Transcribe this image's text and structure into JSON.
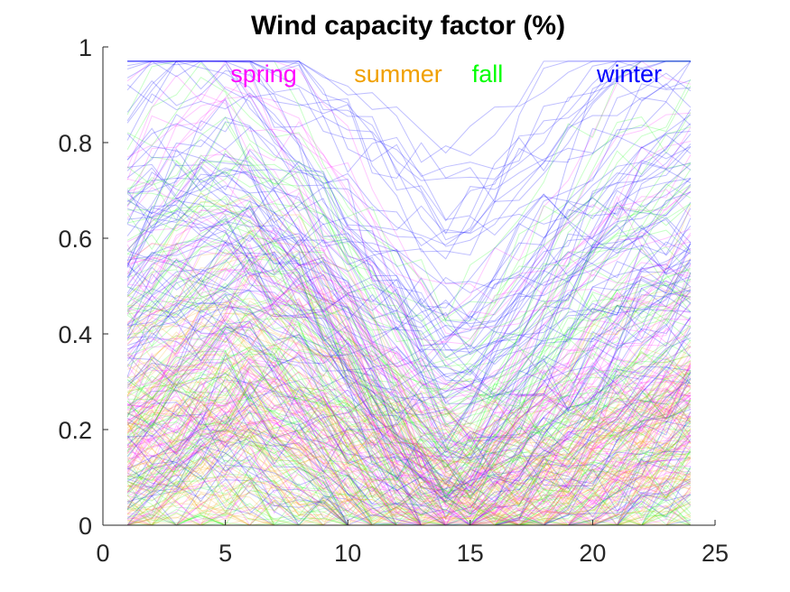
{
  "chart_data": {
    "type": "line",
    "title": "Wind capacity factor (%)",
    "xlabel": "",
    "ylabel": "",
    "xlim": [
      0,
      25
    ],
    "ylim": [
      0,
      1
    ],
    "x_ticks": [
      0,
      5,
      10,
      15,
      20,
      25
    ],
    "y_ticks": [
      0,
      0.2,
      0.4,
      0.6,
      0.8,
      1
    ],
    "x_tick_labels": [
      "0",
      "5",
      "10",
      "15",
      "20",
      "25"
    ],
    "y_tick_labels": [
      "0",
      "0.2",
      "0.4",
      "0.6",
      "0.8",
      "1"
    ],
    "x": [
      1,
      2,
      3,
      4,
      5,
      6,
      7,
      8,
      9,
      10,
      11,
      12,
      13,
      14,
      15,
      16,
      17,
      18,
      19,
      20,
      21,
      22,
      23,
      24
    ],
    "grid": false,
    "legend_position": "top (inside plot area)",
    "series": [
      {
        "name": "spring",
        "color": "#ff00ff",
        "line_count": 90,
        "line_opacity": 0.22,
        "profiles": [
          [
            0.62,
            0.66,
            0.7,
            0.72,
            0.74,
            0.7,
            0.65,
            0.6,
            0.55,
            0.48,
            0.4,
            0.33,
            0.25,
            0.2,
            0.22,
            0.28,
            0.35,
            0.4,
            0.45,
            0.5,
            0.55,
            0.58,
            0.6,
            0.62
          ],
          [
            0.28,
            0.3,
            0.33,
            0.36,
            0.4,
            0.45,
            0.48,
            0.5,
            0.46,
            0.4,
            0.32,
            0.24,
            0.16,
            0.1,
            0.08,
            0.1,
            0.14,
            0.18,
            0.22,
            0.25,
            0.27,
            0.28,
            0.3,
            0.32
          ],
          [
            0.1,
            0.12,
            0.15,
            0.18,
            0.2,
            0.22,
            0.2,
            0.18,
            0.15,
            0.12,
            0.1,
            0.08,
            0.05,
            0.03,
            0.02,
            0.03,
            0.05,
            0.07,
            0.09,
            0.12,
            0.15,
            0.18,
            0.22,
            0.25
          ]
        ]
      },
      {
        "name": "summer",
        "color": "#f0a000",
        "line_count": 90,
        "line_opacity": 0.22,
        "profiles": [
          [
            0.3,
            0.33,
            0.36,
            0.4,
            0.42,
            0.45,
            0.43,
            0.4,
            0.35,
            0.28,
            0.2,
            0.14,
            0.08,
            0.05,
            0.04,
            0.05,
            0.07,
            0.1,
            0.13,
            0.16,
            0.2,
            0.24,
            0.27,
            0.3
          ],
          [
            0.12,
            0.14,
            0.16,
            0.18,
            0.2,
            0.22,
            0.2,
            0.17,
            0.14,
            0.1,
            0.07,
            0.04,
            0.02,
            0.01,
            0.01,
            0.02,
            0.03,
            0.05,
            0.07,
            0.09,
            0.11,
            0.13,
            0.15,
            0.17
          ],
          [
            0.05,
            0.06,
            0.07,
            0.08,
            0.09,
            0.1,
            0.09,
            0.08,
            0.06,
            0.04,
            0.03,
            0.02,
            0.01,
            0.0,
            0.0,
            0.01,
            0.02,
            0.03,
            0.04,
            0.05,
            0.06,
            0.07,
            0.08,
            0.09
          ]
        ]
      },
      {
        "name": "fall",
        "color": "#00ff00",
        "line_count": 90,
        "line_opacity": 0.22,
        "profiles": [
          [
            0.6,
            0.62,
            0.65,
            0.66,
            0.68,
            0.66,
            0.62,
            0.58,
            0.52,
            0.46,
            0.4,
            0.34,
            0.28,
            0.24,
            0.25,
            0.3,
            0.36,
            0.42,
            0.48,
            0.52,
            0.56,
            0.58,
            0.6,
            0.62
          ],
          [
            0.25,
            0.27,
            0.3,
            0.32,
            0.35,
            0.36,
            0.34,
            0.31,
            0.27,
            0.22,
            0.17,
            0.12,
            0.08,
            0.06,
            0.06,
            0.08,
            0.11,
            0.14,
            0.17,
            0.2,
            0.22,
            0.24,
            0.26,
            0.28
          ],
          [
            0.08,
            0.09,
            0.1,
            0.12,
            0.13,
            0.14,
            0.13,
            0.11,
            0.09,
            0.07,
            0.05,
            0.04,
            0.03,
            0.02,
            0.02,
            0.03,
            0.04,
            0.05,
            0.06,
            0.07,
            0.08,
            0.09,
            0.1,
            0.11
          ]
        ]
      },
      {
        "name": "winter",
        "color": "#0000ff",
        "line_count": 90,
        "line_opacity": 0.25,
        "profiles": [
          [
            0.82,
            0.84,
            0.86,
            0.87,
            0.88,
            0.86,
            0.82,
            0.78,
            0.74,
            0.7,
            0.66,
            0.62,
            0.58,
            0.55,
            0.56,
            0.6,
            0.65,
            0.7,
            0.74,
            0.78,
            0.82,
            0.85,
            0.87,
            0.88
          ],
          [
            0.55,
            0.58,
            0.6,
            0.62,
            0.64,
            0.62,
            0.58,
            0.54,
            0.48,
            0.42,
            0.36,
            0.3,
            0.24,
            0.2,
            0.22,
            0.28,
            0.34,
            0.4,
            0.46,
            0.52,
            0.56,
            0.6,
            0.62,
            0.64
          ],
          [
            0.22,
            0.24,
            0.26,
            0.28,
            0.3,
            0.28,
            0.25,
            0.22,
            0.18,
            0.14,
            0.11,
            0.08,
            0.06,
            0.05,
            0.05,
            0.06,
            0.08,
            0.1,
            0.13,
            0.16,
            0.2,
            0.24,
            0.28,
            0.32
          ]
        ]
      }
    ]
  }
}
